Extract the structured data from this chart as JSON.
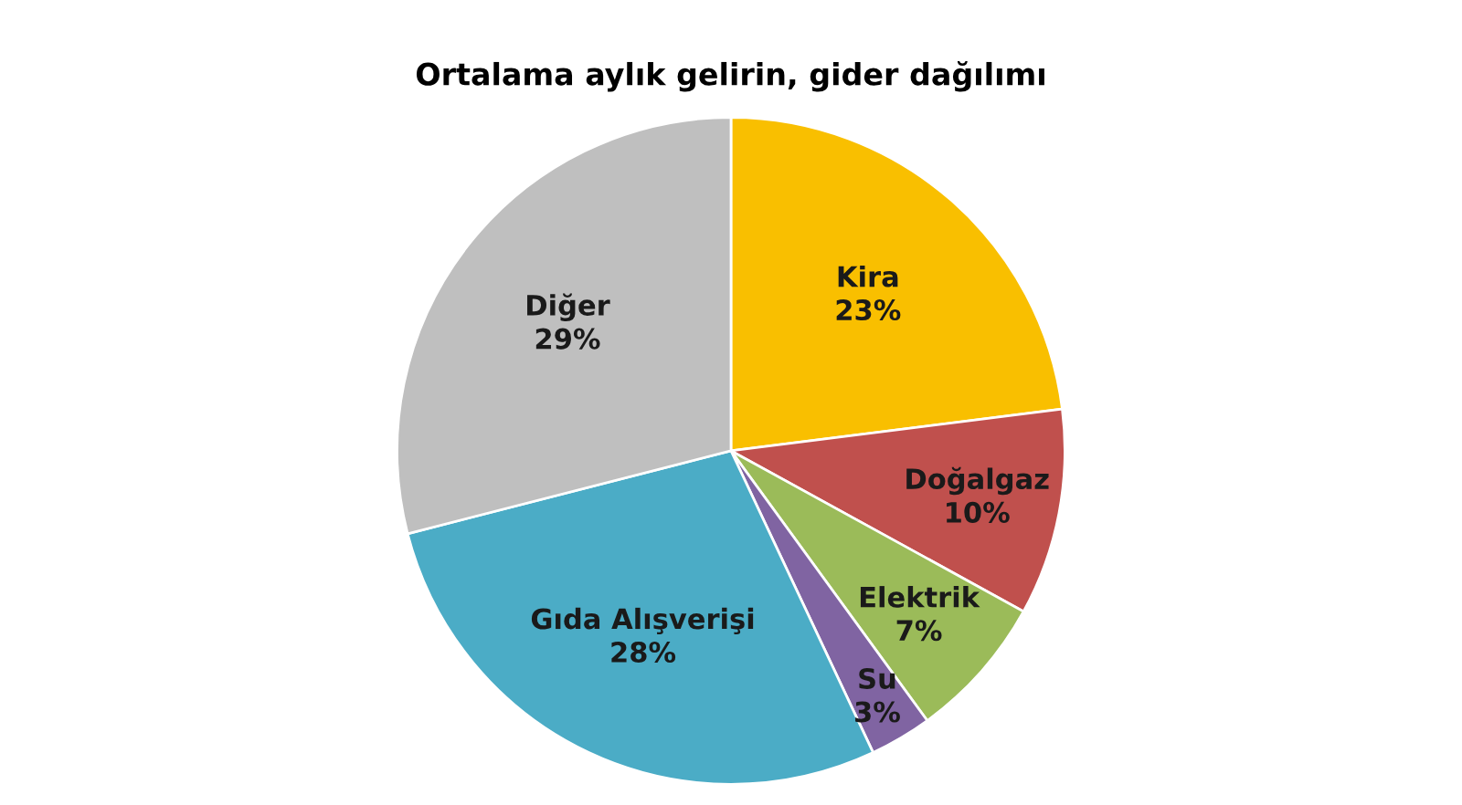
{
  "chart_data": {
    "type": "pie",
    "title": "Ortalama aylık gelirin, gider dağılımı",
    "categories": [
      "Kira",
      "Doğalgaz",
      "Elektrik",
      "Su",
      "Gıda Alışverişi",
      "Diğer"
    ],
    "values": [
      23,
      10,
      7,
      3,
      28,
      29
    ],
    "value_labels": [
      "23%",
      "10%",
      "7%",
      "3%",
      "28%",
      "29%"
    ],
    "colors": [
      "#f9bf00",
      "#c0504d",
      "#9bbb59",
      "#8064a2",
      "#4bacc6",
      "#bfbfbf"
    ],
    "legend": false
  }
}
